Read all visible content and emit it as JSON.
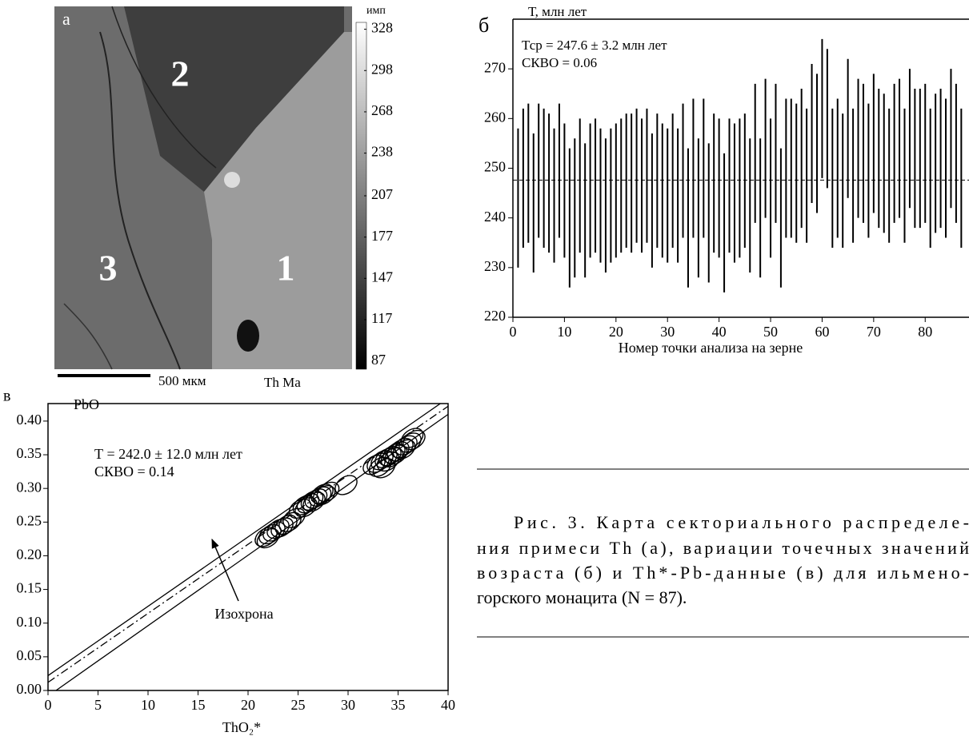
{
  "chart_data": [
    {
      "type": "image",
      "panel_label": "а",
      "colorbar_title": "имп",
      "clim": [
        81,
        333
      ],
      "colorbar_ticks": [
        328,
        298,
        268,
        238,
        207,
        177,
        147,
        117,
        87
      ],
      "sector_labels": [
        "2",
        "3",
        "1"
      ],
      "scale_bar_label": "500 мкм",
      "element_label": "Th Ma"
    },
    {
      "type": "range",
      "panel_label": "б",
      "y_label": "Т, млн лет",
      "x_label": "Номер точки анализа на зерне",
      "annotations": [
        "Тср = 247.6 ± 3.2 млн лет",
        "СКВО = 0.06"
      ],
      "mean": 247.6,
      "x": [
        1,
        2,
        3,
        4,
        5,
        6,
        7,
        8,
        9,
        10,
        11,
        12,
        13,
        14,
        15,
        16,
        17,
        18,
        19,
        20,
        21,
        22,
        23,
        24,
        25,
        26,
        27,
        28,
        29,
        30,
        31,
        32,
        33,
        34,
        35,
        36,
        37,
        38,
        39,
        40,
        41,
        42,
        43,
        44,
        45,
        46,
        47,
        48,
        49,
        50,
        51,
        52,
        53,
        54,
        55,
        56,
        57,
        58,
        59,
        60,
        61,
        62,
        63,
        64,
        65,
        66,
        67,
        68,
        69,
        70,
        71,
        72,
        73,
        74,
        75,
        76,
        77,
        78,
        79,
        80,
        81,
        82,
        83,
        84,
        85,
        86,
        87
      ],
      "low": [
        230,
        234,
        235,
        229,
        236,
        234,
        233,
        231,
        236,
        232,
        226,
        228,
        233,
        228,
        232,
        233,
        231,
        229,
        231,
        232,
        233,
        234,
        233,
        235,
        233,
        235,
        230,
        234,
        232,
        231,
        234,
        231,
        236,
        226,
        236,
        228,
        236,
        227,
        233,
        232,
        225,
        233,
        231,
        232,
        234,
        229,
        239,
        228,
        240,
        232,
        239,
        226,
        236,
        236,
        235,
        238,
        235,
        243,
        241,
        248,
        246,
        234,
        236,
        234,
        244,
        235,
        240,
        239,
        236,
        241,
        238,
        237,
        235,
        239,
        240,
        235,
        242,
        238,
        238,
        239,
        234,
        237,
        238,
        236,
        242,
        239,
        234
      ],
      "high": [
        258,
        262,
        263,
        257,
        263,
        262,
        261,
        258,
        263,
        259,
        254,
        256,
        260,
        255,
        259,
        260,
        258,
        256,
        258,
        259,
        260,
        261,
        261,
        262,
        260,
        262,
        257,
        261,
        259,
        258,
        261,
        258,
        263,
        254,
        264,
        256,
        264,
        255,
        261,
        260,
        253,
        260,
        259,
        260,
        261,
        256,
        267,
        256,
        268,
        260,
        267,
        254,
        264,
        264,
        263,
        266,
        262,
        271,
        269,
        276,
        274,
        262,
        264,
        261,
        272,
        262,
        268,
        267,
        263,
        269,
        266,
        265,
        262,
        267,
        268,
        262,
        270,
        266,
        266,
        267,
        262,
        265,
        266,
        264,
        270,
        267,
        262
      ],
      "xlim": [
        0,
        88.5
      ],
      "ylim": [
        220,
        280
      ],
      "xticks": [
        0,
        10,
        20,
        30,
        40,
        50,
        60,
        70,
        80
      ],
      "yticks": [
        220,
        230,
        240,
        250,
        260,
        270
      ]
    },
    {
      "type": "scatter",
      "panel_label": "в",
      "y_label": "PbO",
      "x_label": "ThO₂*",
      "annotations": [
        "Т = 242.0 ± 12.0 млн лет",
        "СКВО = 0.14"
      ],
      "line_label": "Изохрона",
      "x": [
        21.8,
        22.2,
        22.6,
        23.0,
        23.4,
        22.0,
        23.8,
        24.2,
        24.6,
        25.2,
        25.6,
        26.0,
        26.4,
        26.8,
        27.2,
        27.6,
        28.0,
        25.8,
        26.6,
        27.4,
        29.8,
        32.6,
        33.0,
        33.4,
        33.8,
        34.2,
        34.6,
        35.0,
        35.4,
        35.8,
        36.2,
        36.6,
        33.2,
        34.0,
        34.8,
        35.6,
        36.4,
        33.6,
        34.4
      ],
      "y": [
        0.228,
        0.232,
        0.236,
        0.24,
        0.242,
        0.226,
        0.246,
        0.25,
        0.256,
        0.27,
        0.275,
        0.278,
        0.282,
        0.285,
        0.288,
        0.29,
        0.295,
        0.272,
        0.28,
        0.292,
        0.305,
        0.335,
        0.338,
        0.342,
        0.345,
        0.348,
        0.352,
        0.355,
        0.36,
        0.364,
        0.368,
        0.372,
        0.332,
        0.34,
        0.35,
        0.358,
        0.375,
        0.33,
        0.346
      ],
      "xerr": 1.2,
      "yerr": 0.012,
      "lines": [
        {
          "x": [
            0,
            40
          ],
          "y": [
            0.022,
            0.434
          ],
          "style": "solid"
        },
        {
          "x": [
            0,
            40
          ],
          "y": [
            0.012,
            0.422
          ],
          "style": "dashdot"
        },
        {
          "x": [
            0.8,
            40
          ],
          "y": [
            0,
            0.41
          ],
          "style": "solid"
        }
      ],
      "xlim": [
        0,
        40
      ],
      "ylim": [
        0,
        0.426
      ],
      "xticks": [
        0,
        5,
        10,
        15,
        20,
        25,
        30,
        35,
        40
      ],
      "yticks": [
        {
          "value": 0,
          "label": "0.00"
        },
        0.05,
        {
          "value": 0.1,
          "label": "0.10"
        },
        0.15,
        {
          "value": 0.2,
          "label": "0.20"
        },
        0.25,
        {
          "value": 0.3,
          "label": "0.30"
        },
        0.35,
        {
          "value": 0.4,
          "label": "0.40"
        }
      ]
    }
  ],
  "caption_lines": [
    "Рис. 3. Карта секториального распределе-",
    "ния примеси Th (а), вариации точечных значений",
    "возраста (б) и Th*-Pb-данные (в) для ильмено-",
    "горского монацита (N = 87)."
  ]
}
